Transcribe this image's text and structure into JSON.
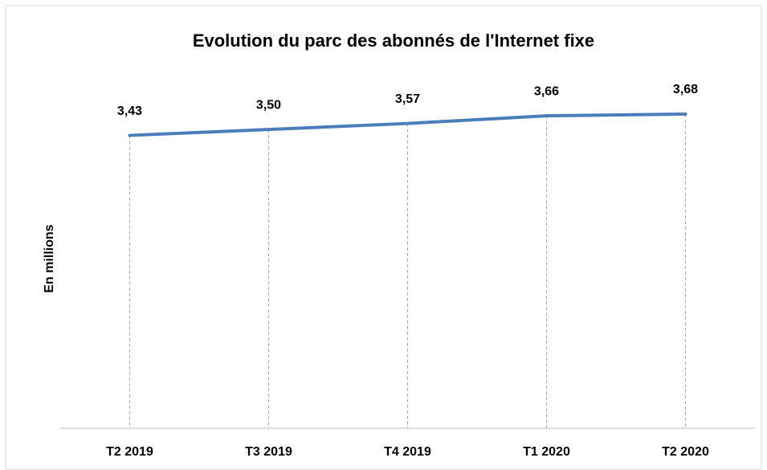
{
  "chart_data": {
    "type": "line",
    "title": "Evolution du parc des abonnés de l'Internet fixe",
    "y_label": "En millions",
    "categories": [
      "T2 2019",
      "T3 2019",
      "T4 2019",
      "T1 2020",
      "T2 2020"
    ],
    "values": [
      3.43,
      3.5,
      3.57,
      3.66,
      3.68
    ],
    "value_labels": [
      "3,43",
      "3,50",
      "3,57",
      "3,66",
      "3,68"
    ],
    "color": "#4a7ebb",
    "ylim": [
      0,
      4
    ],
    "drop_lines": true
  }
}
